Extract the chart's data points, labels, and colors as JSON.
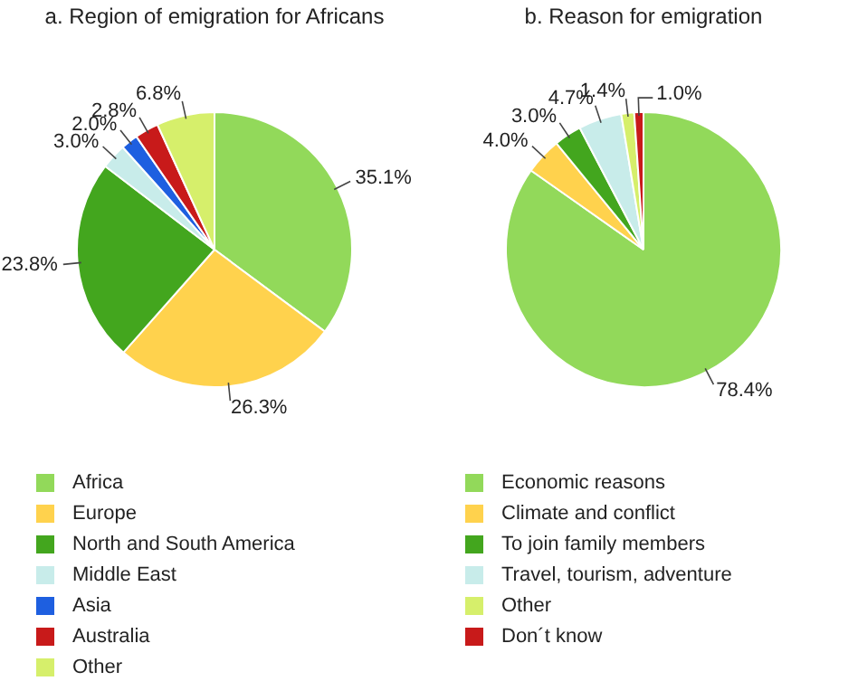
{
  "chart_data": [
    {
      "type": "pie",
      "title": "a. Region of emigration for Africans",
      "categories": [
        "Africa",
        "Europe",
        "North and South America",
        "Middle East",
        "Asia",
        "Australia",
        "Other"
      ],
      "values": [
        35.1,
        26.3,
        23.8,
        3.0,
        2.0,
        2.8,
        6.8
      ],
      "colors": [
        "#92d95a",
        "#ffd24d",
        "#43a61e",
        "#c8ecea",
        "#1e5fe0",
        "#c81a1a",
        "#d6ef6b"
      ],
      "value_labels": [
        "35.1%",
        "26.3%",
        "23.8%",
        "3.0%",
        "2.0%",
        "2.8%",
        "6.8%"
      ],
      "legend": "bottom"
    },
    {
      "type": "pie",
      "title": "b. Reason for emigration",
      "categories": [
        "Economic reasons",
        "Climate and conflict",
        "To join family members",
        "Travel, tourism, adventure",
        "Other",
        "Don´t know"
      ],
      "values": [
        78.4,
        4.0,
        3.0,
        4.7,
        1.4,
        1.0
      ],
      "colors": [
        "#92d95a",
        "#ffd24d",
        "#43a61e",
        "#c8ecea",
        "#d6ef6b",
        "#c81a1a"
      ],
      "value_labels": [
        "78.4%",
        "4.0%",
        "3.0%",
        "4.7%",
        "1.4%",
        "1.0%"
      ],
      "legend": "bottom"
    }
  ]
}
